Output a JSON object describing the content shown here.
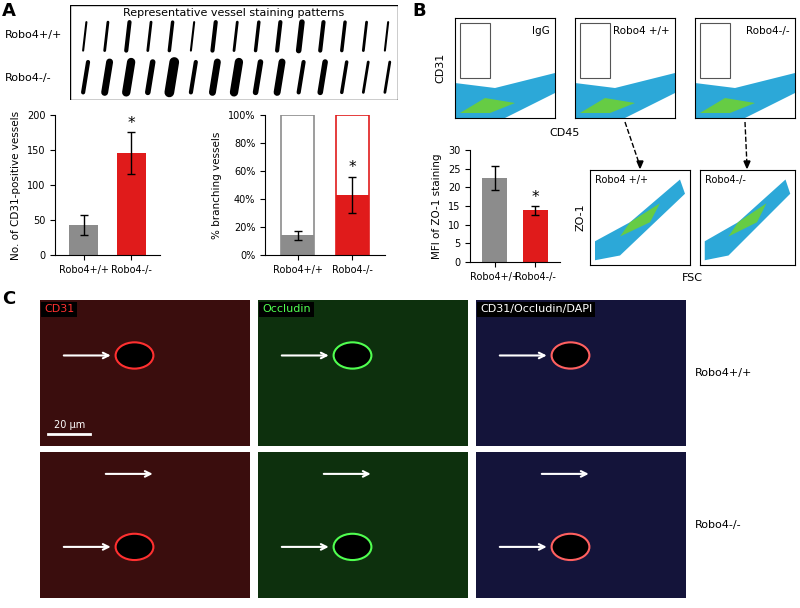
{
  "chart_data": [
    {
      "type": "bar",
      "categories": [
        "Robo4+/+",
        "Robo4-/-"
      ],
      "values": [
        43,
        145
      ],
      "errors": [
        14,
        30
      ],
      "colors": [
        "#8c8c8c",
        "#e01b1b"
      ],
      "y_label": "No. of CD31-positive vessels",
      "ylim": [
        0,
        200
      ],
      "yticks": [
        0,
        50,
        100,
        150,
        200
      ],
      "significance": [
        null,
        "*"
      ]
    },
    {
      "type": "bar",
      "categories": [
        "Robo4+/+",
        "Robo4-/-"
      ],
      "values": [
        14,
        43
      ],
      "errors": [
        3,
        13
      ],
      "totals": [
        100,
        100
      ],
      "colors": [
        "#8c8c8c",
        "#e01b1b"
      ],
      "y_label": "% branching vessels",
      "ylim": [
        0,
        100
      ],
      "yticks": [
        {
          "value": 0,
          "label": "0%"
        },
        {
          "value": 20,
          "label": "20%"
        },
        {
          "value": 40,
          "label": "40%"
        },
        {
          "value": 60,
          "label": "60%"
        },
        {
          "value": 80,
          "label": "80%"
        },
        {
          "value": 100,
          "label": "100%"
        }
      ],
      "significance": [
        null,
        "*"
      ]
    },
    {
      "type": "bar",
      "categories": [
        "Robo4+/+",
        "Robo4-/-"
      ],
      "values": [
        22.5,
        13.8
      ],
      "errors": [
        3.3,
        1.2
      ],
      "colors": [
        "#8c8c8c",
        "#e01b1b"
      ],
      "y_label": "MFI of ZO-1 staining",
      "ylim": [
        0,
        30
      ],
      "yticks": [
        0,
        5,
        10,
        15,
        20,
        25,
        30
      ],
      "significance": [
        null,
        "*"
      ]
    }
  ],
  "panel_letters": [
    "A",
    "B",
    "C"
  ],
  "panel_a": {
    "title": "Representative vessel staining patterns",
    "rows": [
      "Robo4+/+",
      "Robo4-/-"
    ]
  },
  "panel_b": {
    "flow_plots": [
      "IgG",
      "Robo4 +/+",
      "Robo4-/-"
    ],
    "flow_x_label": "CD45",
    "flow_y_label": "CD31",
    "zo1_plots": [
      "Robo4 +/+",
      "Robo4-/-"
    ],
    "zo1_x_label": "FSC",
    "zo1_y_label": "ZO-1"
  },
  "panel_c": {
    "channels": [
      "CD31",
      "Occludin",
      "CD31/Occludin/DAPI"
    ],
    "rows": [
      "Robo4+/+",
      "Robo4-/-"
    ],
    "scale_bar": "20 µm"
  }
}
